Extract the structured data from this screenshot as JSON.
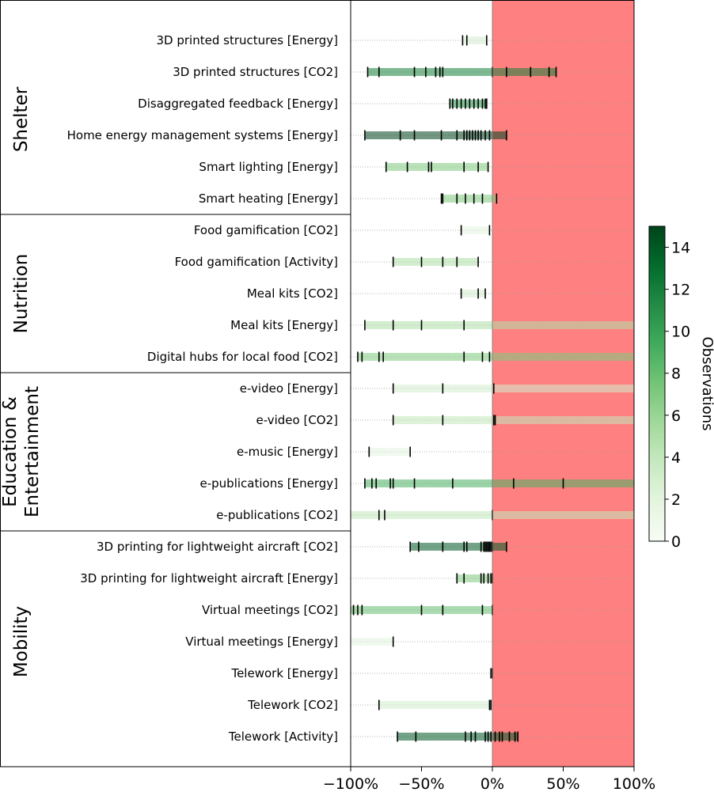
{
  "chart_data": {
    "type": "range-strip",
    "xlim": [
      -100,
      100
    ],
    "x_ticks": [
      "−100%",
      "−50%",
      "0%",
      "50%",
      "100%"
    ],
    "x_tick_values": [
      -100,
      -50,
      0,
      50,
      100
    ],
    "shaded_region": {
      "from": 0,
      "to": 100,
      "color": "#ff8080"
    },
    "groups": [
      {
        "label": "Shelter",
        "rows": [
          0,
          5
        ]
      },
      {
        "label": "Nutrition",
        "rows": [
          6,
          10
        ]
      },
      {
        "label": "Education &\nEntertainment",
        "label_lines": [
          "Education &",
          "Entertainment"
        ],
        "rows": [
          11,
          15
        ]
      },
      {
        "label": "Mobility",
        "rows": [
          16,
          22
        ]
      }
    ],
    "colorbar": {
      "label": "Observations",
      "min": 0,
      "max": 15,
      "ticks": [
        "0",
        "2",
        "4",
        "6",
        "8",
        "10",
        "12",
        "14"
      ],
      "tick_values": [
        0,
        2,
        4,
        6,
        8,
        10,
        12,
        14
      ],
      "colormap": "Greens"
    },
    "rows": [
      {
        "label": "3D printed structures [Energy]",
        "range": [
          -21,
          -4
        ],
        "observations": 3,
        "extends_right": false,
        "ticks": [
          -21,
          -18,
          -4
        ]
      },
      {
        "label": "3D printed structures [CO2]",
        "range": [
          -88,
          45
        ],
        "observations": 12,
        "extends_right": false,
        "ticks": [
          -88,
          -80,
          -55,
          -47,
          -40,
          -37,
          -35,
          0,
          10,
          27,
          40,
          45
        ]
      },
      {
        "label": "Disaggregated feedback [Energy]",
        "range": [
          -30,
          -4
        ],
        "observations": 11,
        "extends_right": false,
        "ticks": [
          -30,
          -28,
          -25,
          -22,
          -19,
          -16,
          -13,
          -10,
          -7,
          -5,
          -4
        ]
      },
      {
        "label": "Home energy management systems [Energy]",
        "range": [
          -90,
          10
        ],
        "observations": 15,
        "extends_right": false,
        "ticks": [
          -90,
          -65,
          -55,
          -36,
          -25,
          -20,
          -18,
          -16,
          -14,
          -12,
          -10,
          -8,
          -5,
          -2,
          10
        ]
      },
      {
        "label": "Smart lighting [Energy]",
        "range": [
          -75,
          -3
        ],
        "observations": 7,
        "extends_right": false,
        "ticks": [
          -75,
          -60,
          -45,
          -43,
          -20,
          -10,
          -3
        ]
      },
      {
        "label": "Smart heating [Energy]",
        "range": [
          -36,
          3
        ],
        "observations": 7,
        "extends_right": false,
        "ticks": [
          -36,
          -35,
          -25,
          -19,
          -13,
          -7,
          3
        ]
      },
      {
        "label": "Food gamification [CO2]",
        "range": [
          -22,
          -2
        ],
        "observations": 2,
        "extends_right": false,
        "ticks": [
          -22,
          -2
        ]
      },
      {
        "label": "Food gamification [Activity]",
        "range": [
          -70,
          -10
        ],
        "observations": 5,
        "extends_right": false,
        "ticks": [
          -70,
          -50,
          -35,
          -25,
          -10
        ]
      },
      {
        "label": "Meal kits [CO2]",
        "range": [
          -22,
          -5
        ],
        "observations": 3,
        "extends_right": false,
        "ticks": [
          -22,
          -10,
          -5
        ]
      },
      {
        "label": "Meal kits [Energy]",
        "range": [
          -90,
          100
        ],
        "observations": 5,
        "extends_right": true,
        "ticks": [
          -90,
          -70,
          -50,
          -20
        ]
      },
      {
        "label": "Digital hubs for local food [CO2]",
        "range": [
          -95,
          100
        ],
        "observations": 7,
        "extends_right": true,
        "ticks": [
          -95,
          -92,
          -80,
          -77,
          -20,
          -7,
          -2
        ]
      },
      {
        "label": "e-video [Energy]",
        "range": [
          -70,
          100
        ],
        "observations": 3,
        "extends_right": true,
        "ticks": [
          -70,
          -35,
          1
        ]
      },
      {
        "label": "e-video [CO2]",
        "range": [
          -70,
          100
        ],
        "observations": 4,
        "extends_right": true,
        "ticks": [
          -70,
          -35,
          1,
          2
        ]
      },
      {
        "label": "e-music [Energy]",
        "range": [
          -87,
          -58
        ],
        "observations": 2,
        "extends_right": false,
        "ticks": [
          -87,
          -58
        ]
      },
      {
        "label": "e-publications [Energy]",
        "range": [
          -90,
          100
        ],
        "observations": 9,
        "extends_right": true,
        "ticks": [
          -90,
          -85,
          -82,
          -72,
          -70,
          -55,
          -28,
          15,
          50
        ]
      },
      {
        "label": "e-publications [CO2]",
        "range": [
          -100,
          100
        ],
        "observations": 4,
        "extends_right": true,
        "ticks": [
          -80,
          -76,
          0
        ]
      },
      {
        "label": "3D printing for lightweight aircraft [CO2]",
        "range": [
          -58,
          10
        ],
        "observations": 14,
        "extends_right": false,
        "ticks": [
          -58,
          -52,
          -35,
          -20,
          -18,
          -8,
          -6,
          -5,
          -4,
          -3,
          -2,
          -1,
          0,
          10
        ]
      },
      {
        "label": "3D printing for lightweight aircraft [Energy]",
        "range": [
          -25,
          0
        ],
        "observations": 7,
        "extends_right": false,
        "ticks": [
          -25,
          -20,
          -8,
          -6,
          -3,
          -1,
          0
        ]
      },
      {
        "label": "Virtual meetings [CO2]",
        "range": [
          -100,
          0
        ],
        "observations": 8,
        "extends_right": false,
        "ticks": [
          -98,
          -95,
          -92,
          -50,
          -35,
          -7,
          0
        ]
      },
      {
        "label": "Virtual meetings [Energy]",
        "range": [
          -100,
          -70
        ],
        "observations": 2,
        "extends_right": false,
        "ticks": [
          -70
        ]
      },
      {
        "label": "Telework [Energy]",
        "range": [
          -1,
          0
        ],
        "observations": 2,
        "extends_right": false,
        "ticks": [
          -1,
          0
        ]
      },
      {
        "label": "Telework [CO2]",
        "range": [
          -80,
          -1
        ],
        "observations": 3,
        "extends_right": false,
        "ticks": [
          -80,
          -2,
          -1
        ]
      },
      {
        "label": "Telework [Activity]",
        "range": [
          -67,
          18
        ],
        "observations": 14,
        "extends_right": false,
        "ticks": [
          -67,
          -54,
          -19,
          -15,
          -12,
          -5,
          -3,
          -1,
          2,
          5,
          7,
          12,
          16,
          18
        ]
      }
    ]
  }
}
